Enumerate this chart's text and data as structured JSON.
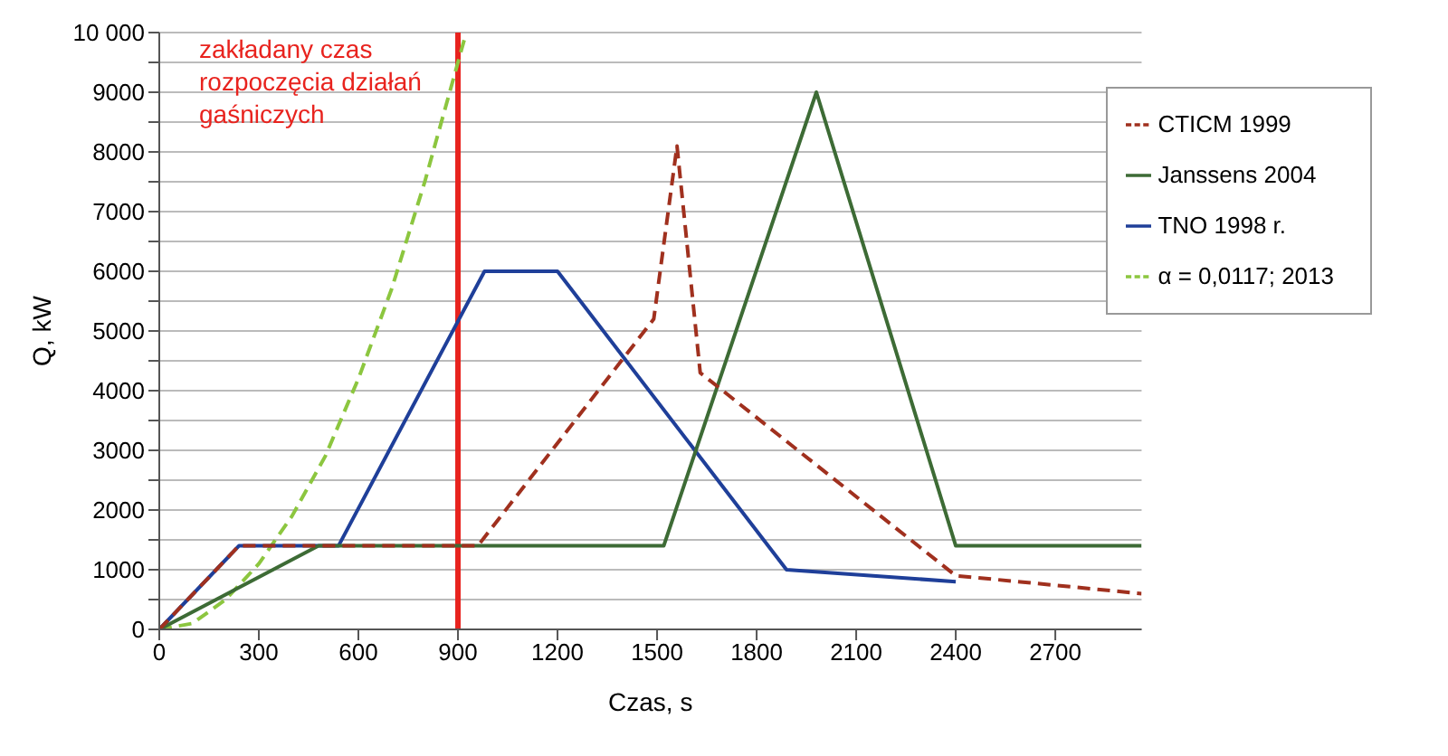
{
  "chart_data": {
    "type": "line",
    "xlabel": "Czas, s",
    "ylabel": "Q, kW",
    "xlim": [
      0,
      2960
    ],
    "xticks": [
      0,
      300,
      600,
      900,
      1200,
      1500,
      1800,
      2100,
      2400,
      2700
    ],
    "ylim": [
      0,
      10000
    ],
    "yticks": [
      0,
      {
        "value": 500,
        "label": null
      },
      1000,
      {
        "value": 1500,
        "label": null
      },
      2000,
      {
        "value": 2500,
        "label": null
      },
      3000,
      {
        "value": 3500,
        "label": null
      },
      4000,
      {
        "value": 4500,
        "label": null
      },
      5000,
      {
        "value": 5500,
        "label": null
      },
      6000,
      {
        "value": 6500,
        "label": null
      },
      7000,
      {
        "value": 7500,
        "label": null
      },
      8000,
      {
        "value": 8500,
        "label": null
      },
      9000,
      {
        "value": 9500,
        "label": null
      },
      {
        "value": 10000,
        "label": "10 000"
      }
    ],
    "grid": "y",
    "legend": "top right",
    "marker": "none",
    "series": [
      {
        "name": "α = 0,0117; 2013",
        "color": "#8cc63f",
        "line_style": "dashed",
        "x": [
          0,
          100,
          200,
          300,
          400,
          500,
          600,
          700,
          800,
          900,
          920
        ],
        "values": [
          0,
          100,
          500,
          1100,
          1900,
          2900,
          4200,
          5700,
          7500,
          9500,
          9900
        ]
      },
      {
        "name": "TNO 1998 r.",
        "color": "#1f3f99",
        "line_style": "solid",
        "x": [
          0,
          240,
          540,
          980,
          1200,
          1890,
          2400
        ],
        "values": [
          0,
          1400,
          1400,
          6000,
          6000,
          1000,
          800
        ]
      },
      {
        "name": "Janssens 2004",
        "color": "#3d6b35",
        "line_style": "solid",
        "x": [
          0,
          480,
          1520,
          1980,
          2400,
          2960
        ],
        "values": [
          0,
          1400,
          1400,
          9000,
          1400,
          1400
        ]
      },
      {
        "name": "CTICM 1999",
        "color": "#a0301e",
        "line_style": "dashed",
        "x": [
          0,
          240,
          960,
          1490,
          1560,
          1630,
          2400,
          2960
        ],
        "values": [
          0,
          1400,
          1400,
          5200,
          8100,
          4300,
          900,
          600
        ]
      }
    ],
    "ref_lines": [
      {
        "axis": "x",
        "value": 900,
        "label": "zakładany czas rozpoczęcia działań gaśniczych",
        "color": "#e8231e"
      }
    ]
  }
}
